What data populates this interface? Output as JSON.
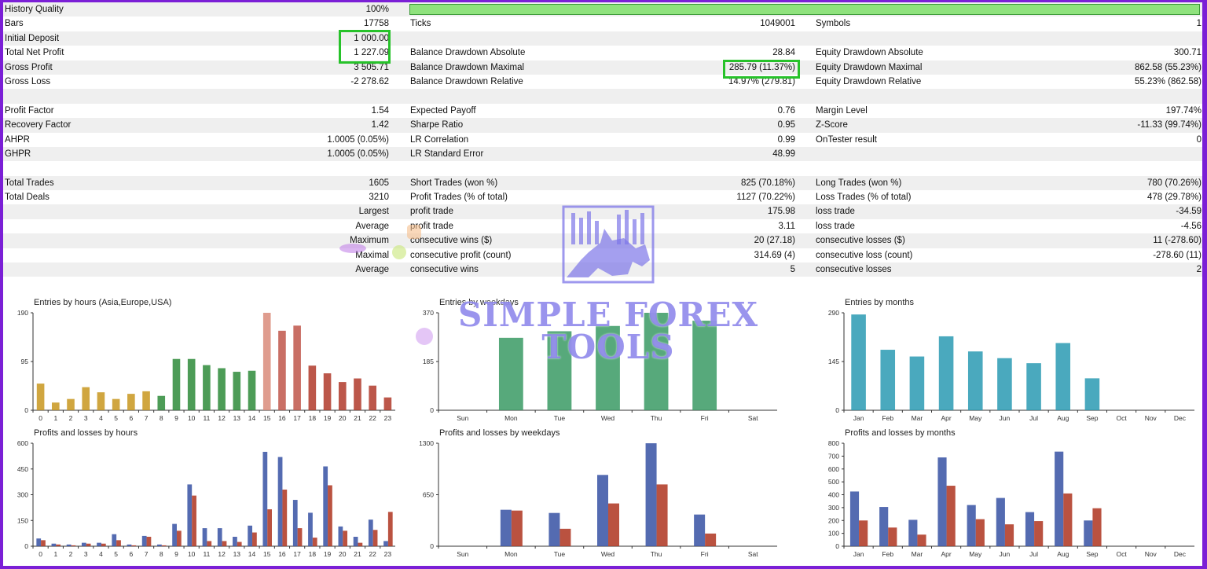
{
  "stats": {
    "rows": [
      {
        "shade": true,
        "l1": "History Quality",
        "v1": "100%",
        "l2": "",
        "v2": "",
        "l3": "",
        "v3": "",
        "quality_bar": true
      },
      {
        "shade": false,
        "l1": "Bars",
        "v1": "17758",
        "l2": "Ticks",
        "v2": "1049001",
        "l3": "Symbols",
        "v3": "1"
      },
      {
        "shade": true,
        "l1": "Initial Deposit",
        "v1": "1 000.00",
        "l2": "",
        "v2": "",
        "l3": "",
        "v3": ""
      },
      {
        "shade": false,
        "l1": "Total Net Profit",
        "v1": "1 227.09",
        "l2": "Balance Drawdown Absolute",
        "v2": "28.84",
        "l3": "Equity Drawdown Absolute",
        "v3": "300.71"
      },
      {
        "shade": true,
        "l1": "Gross Profit",
        "v1": "3 505.71",
        "l2": "Balance Drawdown Maximal",
        "v2": "285.79 (11.37%)",
        "l3": "Equity Drawdown Maximal",
        "v3": "862.58 (55.23%)"
      },
      {
        "shade": false,
        "l1": "Gross Loss",
        "v1": "-2 278.62",
        "l2": "Balance Drawdown Relative",
        "v2": "14.97% (279.81)",
        "l3": "Equity Drawdown Relative",
        "v3": "55.23% (862.58)"
      },
      {
        "shade": true,
        "l1": "",
        "v1": "",
        "l2": "",
        "v2": "",
        "l3": "",
        "v3": ""
      },
      {
        "shade": false,
        "l1": "Profit Factor",
        "v1": "1.54",
        "l2": "Expected Payoff",
        "v2": "0.76",
        "l3": "Margin Level",
        "v3": "197.74%"
      },
      {
        "shade": true,
        "l1": "Recovery Factor",
        "v1": "1.42",
        "l2": "Sharpe Ratio",
        "v2": "0.95",
        "l3": "Z-Score",
        "v3": "-11.33 (99.74%)"
      },
      {
        "shade": false,
        "l1": "AHPR",
        "v1": "1.0005 (0.05%)",
        "l2": "LR Correlation",
        "v2": "0.99",
        "l3": "OnTester result",
        "v3": "0"
      },
      {
        "shade": true,
        "l1": "GHPR",
        "v1": "1.0005 (0.05%)",
        "l2": "LR Standard Error",
        "v2": "48.99",
        "l3": "",
        "v3": ""
      },
      {
        "shade": false,
        "l1": "",
        "v1": "",
        "l2": "",
        "v2": "",
        "l3": "",
        "v3": ""
      },
      {
        "shade": true,
        "l1": "Total Trades",
        "v1": "1605",
        "l2": "Short Trades (won %)",
        "v2": "825 (70.18%)",
        "l3": "Long Trades (won %)",
        "v3": "780 (70.26%)"
      },
      {
        "shade": false,
        "l1": "Total Deals",
        "v1": "3210",
        "l2": "Profit Trades (% of total)",
        "v2": "1127 (70.22%)",
        "l3": "Loss Trades (% of total)",
        "v3": "478 (29.78%)"
      },
      {
        "shade": true,
        "l1": "",
        "v1": "Largest",
        "l2": "profit trade",
        "v2": "175.98",
        "l3": "loss trade",
        "v3": "-34.59"
      },
      {
        "shade": false,
        "l1": "",
        "v1": "Average",
        "l2": "profit trade",
        "v2": "3.11",
        "l3": "loss trade",
        "v3": "-4.56"
      },
      {
        "shade": true,
        "l1": "",
        "v1": "Maximum",
        "l2": "consecutive wins ($)",
        "v2": "20 (27.18)",
        "l3": "consecutive losses ($)",
        "v3": "11 (-278.60)"
      },
      {
        "shade": false,
        "l1": "",
        "v1": "Maximal",
        "l2": "consecutive profit (count)",
        "v2": "314.69 (4)",
        "l3": "consecutive loss (count)",
        "v3": "-278.60 (11)"
      },
      {
        "shade": true,
        "l1": "",
        "v1": "Average",
        "l2": "consecutive wins",
        "v2": "5",
        "l3": "consecutive losses",
        "v3": "2"
      },
      {
        "shade": false,
        "l1": "",
        "v1": "",
        "l2": "",
        "v2": "",
        "l3": "",
        "v3": ""
      }
    ]
  },
  "watermark": {
    "line1": "SIMPLE FOREX",
    "line2": "TOOLS"
  },
  "colors": {
    "ticks_fill": "#3a6",
    "profit": "#3c57a6",
    "loss": "#b03a26"
  },
  "chart_data": [
    {
      "id": "entries-hours",
      "type": "bar",
      "title": "Entries by hours (Asia,Europe,USA)",
      "categories": [
        "0",
        "1",
        "2",
        "3",
        "4",
        "5",
        "6",
        "7",
        "8",
        "9",
        "10",
        "11",
        "12",
        "13",
        "14",
        "15",
        "16",
        "17",
        "18",
        "19",
        "20",
        "21",
        "22",
        "23"
      ],
      "values": [
        52,
        15,
        22,
        45,
        35,
        22,
        32,
        37,
        28,
        100,
        100,
        88,
        82,
        75,
        77,
        190,
        155,
        165,
        87,
        72,
        55,
        62,
        48,
        25
      ],
      "bar_colors": [
        "#c8961e",
        "#c8961e",
        "#c8961e",
        "#c8961e",
        "#c8961e",
        "#c8961e",
        "#c8961e",
        "#c8961e",
        "#2e8b3a",
        "#2e8b3a",
        "#2e8b3a",
        "#2e8b3a",
        "#2e8b3a",
        "#2e8b3a",
        "#2e8b3a",
        "#d98b7a",
        "#c0564a",
        "#c0564a",
        "#b03a2a",
        "#b03a2a",
        "#b03a2a",
        "#b03a2a",
        "#b03a2a",
        "#b03a2a"
      ],
      "yticks": [
        0,
        95,
        190
      ],
      "ylim": [
        0,
        190
      ]
    },
    {
      "id": "entries-weekdays",
      "type": "bar",
      "title": "Entries by weekdays",
      "categories": [
        "Sun",
        "Mon",
        "Tue",
        "Wed",
        "Thu",
        "Fri",
        "Sat"
      ],
      "values": [
        0,
        275,
        300,
        320,
        370,
        340,
        0
      ],
      "bar_colors": [
        "#3a9a64",
        "#3a9a64",
        "#3a9a64",
        "#3a9a64",
        "#3a9a64",
        "#3a9a64",
        "#3a9a64"
      ],
      "yticks": [
        0,
        185,
        370
      ],
      "ylim": [
        0,
        370
      ]
    },
    {
      "id": "entries-months",
      "type": "bar",
      "title": "Entries by months",
      "categories": [
        "Jan",
        "Feb",
        "Mar",
        "Apr",
        "May",
        "Jun",
        "Jul",
        "Aug",
        "Sep",
        "Oct",
        "Nov",
        "Dec"
      ],
      "values": [
        285,
        180,
        160,
        220,
        175,
        155,
        140,
        200,
        95,
        0,
        0,
        0
      ],
      "bar_colors": [
        "#2a9ab3",
        "#2a9ab3",
        "#2a9ab3",
        "#2a9ab3",
        "#2a9ab3",
        "#2a9ab3",
        "#2a9ab3",
        "#2a9ab3",
        "#2a9ab3",
        "#2a9ab3",
        "#2a9ab3",
        "#2a9ab3"
      ],
      "yticks": [
        0,
        145,
        290
      ],
      "ylim": [
        0,
        290
      ]
    },
    {
      "id": "pl-hours",
      "type": "bar",
      "title": "Profits and losses by hours",
      "categories": [
        "0",
        "1",
        "2",
        "3",
        "4",
        "5",
        "6",
        "7",
        "8",
        "9",
        "10",
        "11",
        "12",
        "13",
        "14",
        "15",
        "16",
        "17",
        "18",
        "19",
        "20",
        "21",
        "22",
        "23"
      ],
      "series": [
        {
          "values": [
            45,
            15,
            10,
            20,
            20,
            70,
            10,
            60,
            10,
            130,
            360,
            105,
            105,
            55,
            120,
            550,
            520,
            270,
            195,
            465,
            115,
            55,
            155,
            30
          ]
        },
        {
          "values": [
            35,
            10,
            5,
            15,
            15,
            35,
            5,
            55,
            5,
            90,
            295,
            30,
            30,
            25,
            80,
            215,
            330,
            105,
            50,
            355,
            90,
            20,
            95,
            200
          ]
        }
      ],
      "yticks": [
        0,
        150,
        300,
        450,
        600
      ],
      "ylim": [
        0,
        600
      ]
    },
    {
      "id": "pl-weekdays",
      "type": "bar",
      "title": "Profits and losses by weekdays",
      "categories": [
        "Sun",
        "Mon",
        "Tue",
        "Wed",
        "Thu",
        "Fri",
        "Sat"
      ],
      "series": [
        {
          "values": [
            0,
            460,
            420,
            900,
            1300,
            400,
            0
          ]
        },
        {
          "values": [
            0,
            450,
            220,
            540,
            780,
            160,
            0
          ]
        }
      ],
      "yticks": [
        0,
        650,
        1300
      ],
      "ylim": [
        0,
        1300
      ]
    },
    {
      "id": "pl-months",
      "type": "bar",
      "title": "Profits and losses by months",
      "categories": [
        "Jan",
        "Feb",
        "Mar",
        "Apr",
        "May",
        "Jun",
        "Jul",
        "Aug",
        "Sep",
        "Oct",
        "Nov",
        "Dec"
      ],
      "series": [
        {
          "values": [
            425,
            305,
            205,
            690,
            320,
            375,
            265,
            735,
            200,
            0,
            0,
            0
          ]
        },
        {
          "values": [
            200,
            145,
            90,
            470,
            210,
            170,
            195,
            410,
            295,
            0,
            0,
            0
          ]
        }
      ],
      "yticks": [
        0,
        100,
        200,
        300,
        400,
        500,
        600,
        700,
        800
      ],
      "ylim": [
        0,
        800
      ]
    }
  ]
}
